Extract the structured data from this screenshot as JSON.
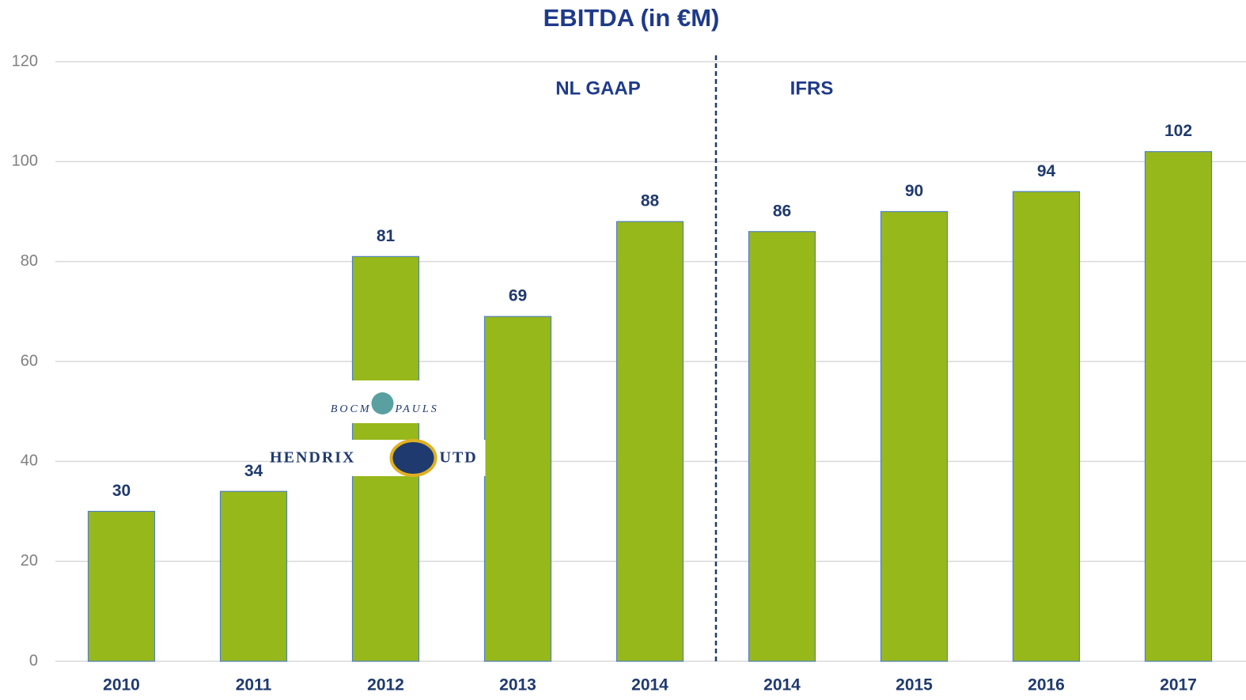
{
  "chart_data": {
    "type": "bar",
    "title": "EBITDA (in €M)",
    "categories": [
      "2010",
      "2011",
      "2012",
      "2013",
      "2014",
      "2014",
      "2015",
      "2016",
      "2017"
    ],
    "values": [
      30,
      34,
      81,
      69,
      88,
      86,
      90,
      94,
      102
    ],
    "color": "#97b81b",
    "ylim": [
      0,
      120
    ],
    "yticks": [
      0,
      20,
      40,
      60,
      80,
      100,
      120
    ],
    "grid": true,
    "annotations": [
      "NL GAAP",
      "IFRS"
    ],
    "logos": [
      "BOCM",
      "PAULS",
      "HENDRIX",
      "UTD"
    ]
  }
}
